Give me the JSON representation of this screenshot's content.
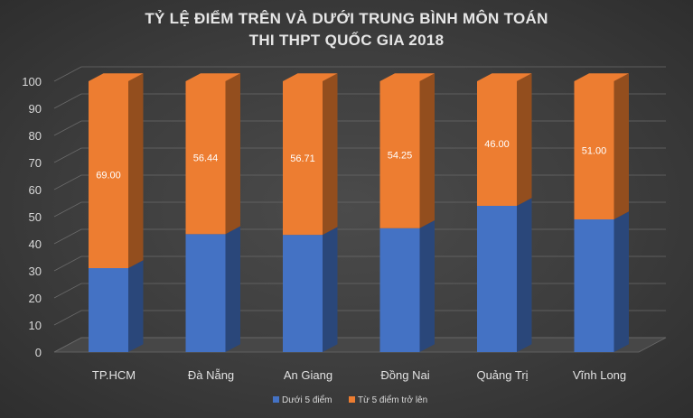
{
  "chart_title": {
    "line1": "TỶ LỆ ĐIỂM TRÊN VÀ DƯỚI TRUNG BÌNH MÔN TOÁN",
    "line2": "THI THPT QUỐC GIA 2018"
  },
  "colors": {
    "below": "#4472c4",
    "above": "#ed7d31",
    "background": "#3d3d3d",
    "gridline": "#6a6a6a"
  },
  "chart_data": {
    "type": "bar",
    "stacked": true,
    "three_d": true,
    "categories": [
      "TP.HCM",
      "Đà Nẵng",
      "An Giang",
      "Đồng Nai",
      "Quảng Trị",
      "Vĩnh Long"
    ],
    "series": [
      {
        "name": "Dưới 5 điểm",
        "values": [
          31.0,
          43.56,
          43.29,
          45.75,
          54.0,
          49.0
        ]
      },
      {
        "name": "Từ 5 điểm trở lên",
        "values": [
          69.0,
          56.44,
          56.71,
          54.25,
          46.0,
          51.0
        ],
        "labels": [
          "69.00",
          "56.44",
          "56.71",
          "54.25",
          "46.00",
          "51.00"
        ]
      }
    ],
    "y_ticks": [
      "0",
      "10",
      "20",
      "30",
      "40",
      "50",
      "60",
      "70",
      "80",
      "90",
      "100"
    ],
    "ylim": [
      0,
      100
    ],
    "grid": true,
    "legend_position": "bottom"
  }
}
